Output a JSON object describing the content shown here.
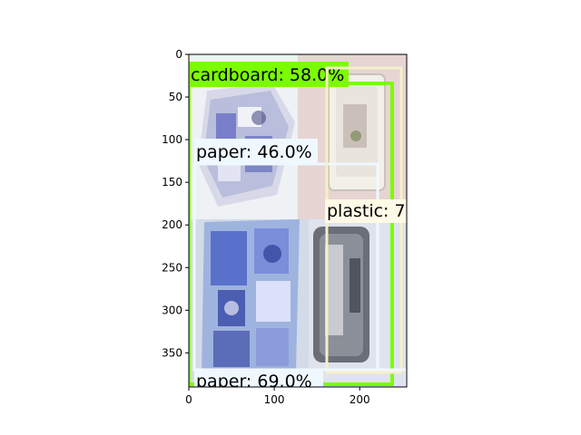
{
  "axes": {
    "x_ticks": [
      "0",
      "100",
      "200"
    ],
    "y_ticks": [
      "0",
      "50",
      "100",
      "150",
      "200",
      "250",
      "300",
      "350"
    ],
    "xlim": [
      0,
      255
    ],
    "ylim": [
      390,
      0
    ]
  },
  "detections": [
    {
      "label": "cardboard: 58.0%",
      "color": "#7cfc00"
    },
    {
      "label": "paper: 46.0%",
      "color": "#f0f8ff"
    },
    {
      "label": "plastic: 7",
      "color": "#fffae6"
    },
    {
      "label": "paper: 69.0%",
      "color": "#f0f8ff"
    }
  ],
  "colors": {
    "cardboard_box": "#7cfc00",
    "paper_box": "#f0f8ff",
    "plastic_box": "#f5f0c8"
  }
}
